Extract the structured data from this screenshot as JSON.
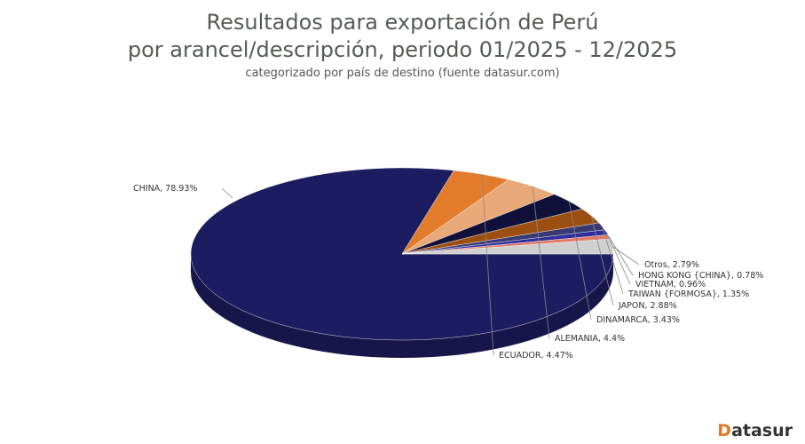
{
  "header": {
    "title_line1": "Resultados para exportación de Perú",
    "title_line2": "por arancel/descripción, periodo 01/2025 - 12/2025",
    "subtitle": "categorizado por país de destino (fuente datasur.com)"
  },
  "brand": {
    "first_letter": "D",
    "rest": "atasur",
    "accent_color": "#e37a27"
  },
  "chart_data": {
    "type": "pie",
    "style": "3d",
    "title": "Resultados para exportación de Perú por arancel/descripción, periodo 01/2025 - 12/2025",
    "subtitle": "categorizado por país de destino (fuente datasur.com)",
    "slices": [
      {
        "label": "CHINA",
        "value": 78.93,
        "color": "#1c1c60",
        "data_label": "CHINA, 78.93%"
      },
      {
        "label": "ECUADOR",
        "value": 4.47,
        "color": "#e27c2a",
        "data_label": "ECUADOR, 4.47%"
      },
      {
        "label": "ALEMANIA",
        "value": 4.4,
        "color": "#e9a877",
        "data_label": "ALEMANIA, 4.4%"
      },
      {
        "label": "DINAMARCA",
        "value": 3.43,
        "color": "#10103a",
        "data_label": "DINAMARCA, 3.43%"
      },
      {
        "label": "JAPON",
        "value": 2.88,
        "color": "#9c4f10",
        "data_label": "JAPON, 2.88%"
      },
      {
        "label": "TAIWAN {FORMOSA}",
        "value": 1.35,
        "color": "#3a3a72",
        "data_label": "TAIWAN {FORMOSA}, 1.35%"
      },
      {
        "label": "VIETNAM",
        "value": 0.96,
        "color": "#2e2e9c",
        "data_label": "VIETNAM, 0.96%"
      },
      {
        "label": "HONG KONG {CHINA}",
        "value": 0.78,
        "color": "#e07a66",
        "data_label": "HONG KONG {CHINA}, 0.78%"
      },
      {
        "label": "Otros",
        "value": 2.79,
        "color": "#cfcfcf",
        "data_label": "Otros, 2.79%"
      }
    ],
    "legend": "none"
  }
}
